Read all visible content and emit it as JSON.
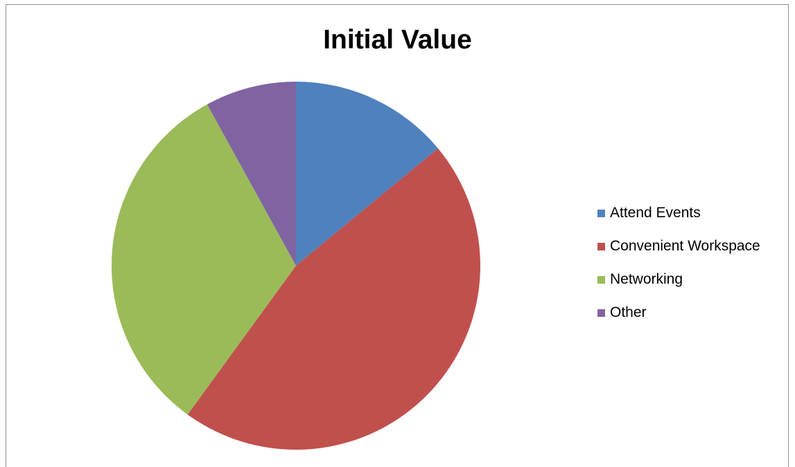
{
  "chart_data": {
    "type": "pie",
    "title": "Initial Value",
    "categories": [
      "Attend Events",
      "Convenient Workspace",
      "Networking",
      "Other"
    ],
    "values": [
      14,
      46,
      32,
      8
    ],
    "colors": [
      "#4f81bd",
      "#c0504d",
      "#9bbb59",
      "#8064a2"
    ],
    "start_angle_deg": 0,
    "direction": "clockwise",
    "legend_position": "right"
  },
  "legend": {
    "items": [
      {
        "label": "Attend Events",
        "color": "#4f81bd"
      },
      {
        "label": "Convenient Workspace",
        "color": "#c0504d"
      },
      {
        "label": "Networking",
        "color": "#9bbb59"
      },
      {
        "label": "Other",
        "color": "#8064a2"
      }
    ]
  }
}
